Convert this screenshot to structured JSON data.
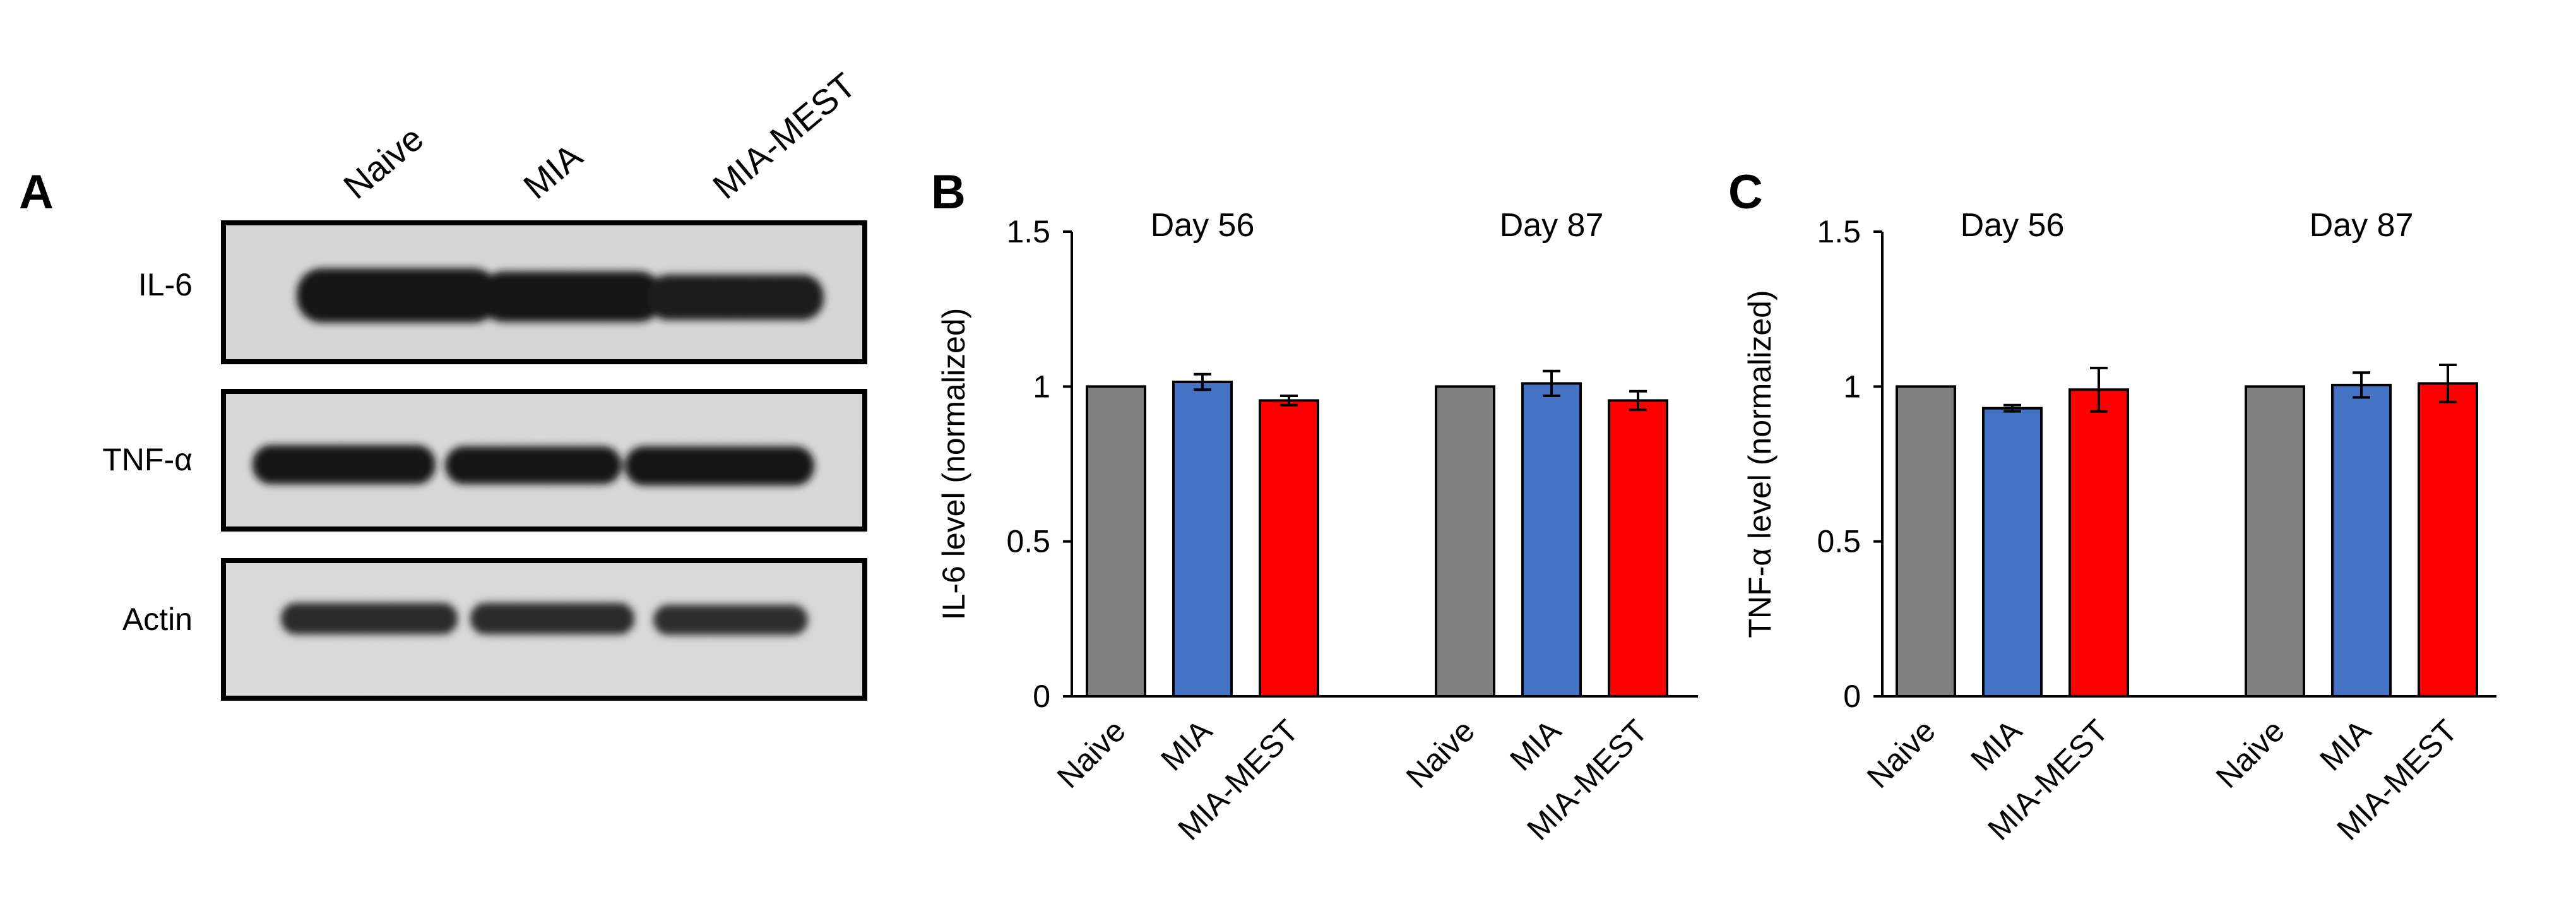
{
  "panel_a": {
    "letter": "A",
    "lanes": [
      "Naive",
      "MIA",
      "MIA-MEST"
    ],
    "rows": [
      "IL-6",
      "TNF-α",
      "Actin"
    ]
  },
  "chart_data": [
    {
      "type": "bar",
      "letter": "B",
      "title": "",
      "ylabel": "IL-6 level (normalized)",
      "xlabel": "",
      "ylim": [
        0,
        1.5
      ],
      "yticks": [
        0,
        0.5,
        1,
        1.5
      ],
      "yticklabels": [
        "0",
        "0.5",
        "1",
        "1.5"
      ],
      "groups": [
        {
          "label": "Day 56",
          "categories": [
            "Naive",
            "MIA",
            "MIA-MEST"
          ],
          "values": [
            1.0,
            1.015,
            0.955
          ],
          "errors": [
            0,
            0.025,
            0.015
          ]
        },
        {
          "label": "Day 87",
          "categories": [
            "Naive",
            "MIA",
            "MIA-MEST"
          ],
          "values": [
            1.0,
            1.01,
            0.955
          ],
          "errors": [
            0,
            0.04,
            0.03
          ]
        }
      ],
      "colors": [
        "#808080",
        "#4472C4",
        "#FF0000"
      ]
    },
    {
      "type": "bar",
      "letter": "C",
      "title": "",
      "ylabel": "TNF-α level (normalized)",
      "xlabel": "",
      "ylim": [
        0,
        1.5
      ],
      "yticks": [
        0,
        0.5,
        1,
        1.5
      ],
      "yticklabels": [
        "0",
        "0.5",
        "1",
        "1.5"
      ],
      "groups": [
        {
          "label": "Day 56",
          "categories": [
            "Naive",
            "MIA",
            "MIA-MEST"
          ],
          "values": [
            1.0,
            0.93,
            0.99
          ],
          "errors": [
            0,
            0.01,
            0.07
          ]
        },
        {
          "label": "Day 87",
          "categories": [
            "Naive",
            "MIA",
            "MIA-MEST"
          ],
          "values": [
            1.0,
            1.005,
            1.01
          ],
          "errors": [
            0,
            0.04,
            0.06
          ]
        }
      ],
      "colors": [
        "#808080",
        "#4472C4",
        "#FF0000"
      ]
    }
  ]
}
